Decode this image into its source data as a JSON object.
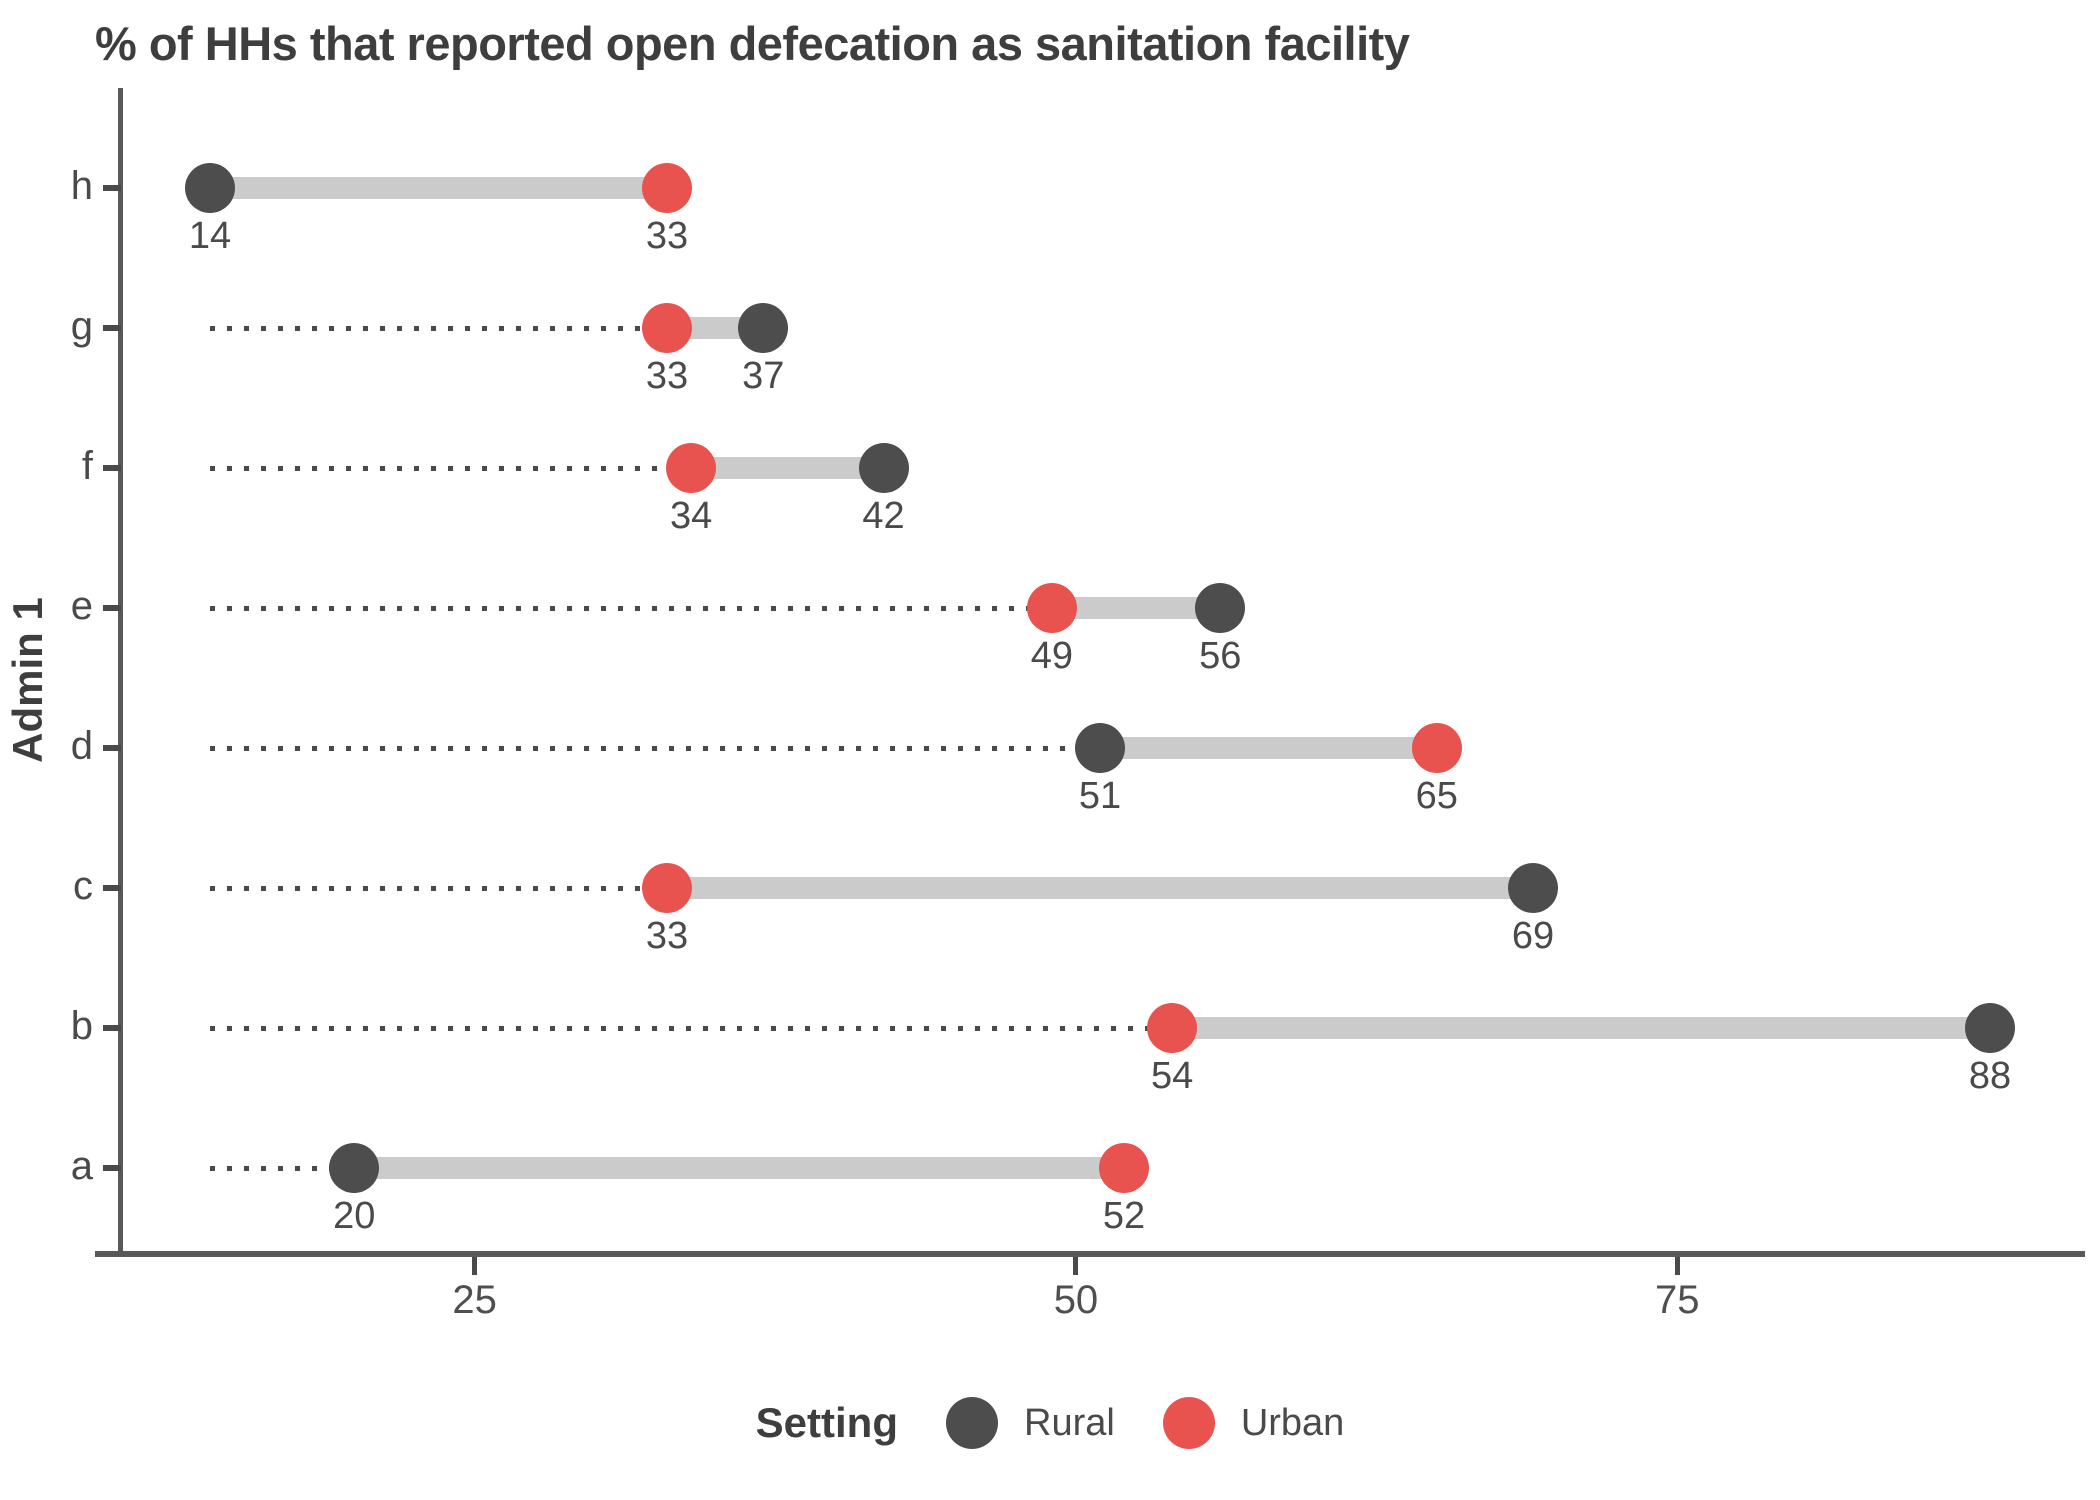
{
  "title": "% of HHs that reported open defecation as sanitation facility",
  "colors": {
    "rural": "#4d4d4d",
    "urban": "#e9534f",
    "connector": "#cbcbcb",
    "leader": "#4a4a4a",
    "axis": "#595959",
    "text": "#4a4a4a"
  },
  "chart_data": {
    "type": "dumbbell",
    "orientation": "horizontal",
    "title": "% of HHs that reported open defecation as sanitation facility",
    "xlabel": "",
    "ylabel": "Admin 1",
    "x_ticks": [
      25,
      50,
      75
    ],
    "x_domain": [
      10.3,
      91.7
    ],
    "leader_origin": 14,
    "grid": false,
    "categories": [
      "h",
      "g",
      "f",
      "e",
      "d",
      "c",
      "b",
      "a"
    ],
    "series": [
      {
        "name": "Rural",
        "color": "#4d4d4d",
        "values": [
          14,
          37,
          42,
          56,
          51,
          69,
          88,
          20
        ]
      },
      {
        "name": "Urban",
        "color": "#e9534f",
        "values": [
          33,
          33,
          34,
          49,
          65,
          33,
          54,
          52
        ]
      }
    ],
    "legend": {
      "position": "bottom",
      "title": "Setting",
      "entries": [
        {
          "label": "Rural",
          "color": "#4d4d4d"
        },
        {
          "label": "Urban",
          "color": "#e9534f"
        }
      ]
    }
  }
}
